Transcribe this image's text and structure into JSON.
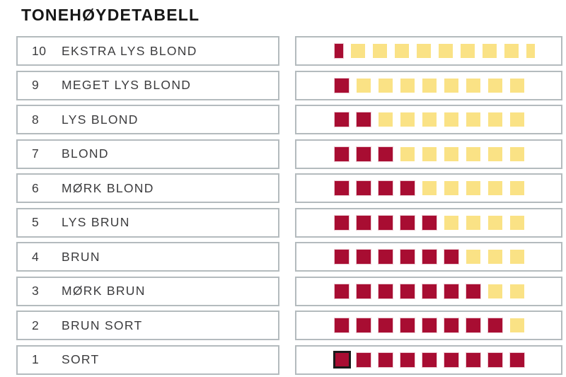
{
  "title": "TONEHØYDETABELL",
  "colors": {
    "dark_red": "#A80D32",
    "light_yellow": "#FAE285",
    "outline_black": "#1A1A1A",
    "box_border": "#B4BBBE",
    "text": "#3C3C3E"
  },
  "table": {
    "rows": [
      {
        "value": "10",
        "label": "EKSTRA LYS BLOND",
        "cells": [
          "dark-half",
          "light-full",
          "light-full",
          "light-full",
          "light-full",
          "light-full",
          "light-full",
          "light-full",
          "light-full",
          "light-half"
        ]
      },
      {
        "value": "9",
        "label": "MEGET LYS BLOND",
        "cells": [
          "dark-full",
          "light-full",
          "light-full",
          "light-full",
          "light-full",
          "light-full",
          "light-full",
          "light-full",
          "light-full"
        ]
      },
      {
        "value": "8",
        "label": "LYS BLOND",
        "cells": [
          "dark-full",
          "dark-full",
          "light-full",
          "light-full",
          "light-full",
          "light-full",
          "light-full",
          "light-full",
          "light-full"
        ]
      },
      {
        "value": "7",
        "label": "BLOND",
        "cells": [
          "dark-full",
          "dark-full",
          "dark-full",
          "light-full",
          "light-full",
          "light-full",
          "light-full",
          "light-full",
          "light-full"
        ]
      },
      {
        "value": "6",
        "label": "MØRK BLOND",
        "cells": [
          "dark-full",
          "dark-full",
          "dark-full",
          "dark-full",
          "light-full",
          "light-full",
          "light-full",
          "light-full",
          "light-full"
        ]
      },
      {
        "value": "5",
        "label": "LYS BRUN",
        "cells": [
          "dark-full",
          "dark-full",
          "dark-full",
          "dark-full",
          "dark-full",
          "light-full",
          "light-full",
          "light-full",
          "light-full"
        ]
      },
      {
        "value": "4",
        "label": "BRUN",
        "cells": [
          "dark-full",
          "dark-full",
          "dark-full",
          "dark-full",
          "dark-full",
          "dark-full",
          "light-full",
          "light-full",
          "light-full"
        ]
      },
      {
        "value": "3",
        "label": "MØRK BRUN",
        "cells": [
          "dark-full",
          "dark-full",
          "dark-full",
          "dark-full",
          "dark-full",
          "dark-full",
          "dark-full",
          "light-full",
          "light-full"
        ]
      },
      {
        "value": "2",
        "label": "BRUN SORT",
        "cells": [
          "dark-full",
          "dark-full",
          "dark-full",
          "dark-full",
          "dark-full",
          "dark-full",
          "dark-full",
          "dark-full",
          "light-full"
        ]
      },
      {
        "value": "1",
        "label": "SORT",
        "cells": [
          "dark-outlined",
          "dark-full",
          "dark-full",
          "dark-full",
          "dark-full",
          "dark-full",
          "dark-full",
          "dark-full",
          "dark-full"
        ]
      }
    ]
  },
  "chart_data": {
    "type": "table",
    "title": "TONEHØYDETABELL",
    "categories": [
      "10 EKSTRA LYS BLOND",
      "9 MEGET LYS BLOND",
      "8 LYS BLOND",
      "7 BLOND",
      "6 MØRK BLOND",
      "5 LYS BRUN",
      "4 BRUN",
      "3 MØRK BRUN",
      "2 BRUN SORT",
      "1 SORT"
    ],
    "series": [
      {
        "name": "dark-red squares",
        "values": [
          0.5,
          1,
          2,
          3,
          4,
          5,
          6,
          7,
          8,
          9
        ]
      },
      {
        "name": "light-yellow squares",
        "values": [
          8.5,
          8,
          7,
          6,
          5,
          4,
          3,
          2,
          1,
          0
        ]
      }
    ],
    "notes": "Each level shows 9 units of squares: dark red = depth, pale yellow = lightness. Level 10 uses half-width first dark and last yellow squares; level 1 first dark square has a black outline."
  }
}
